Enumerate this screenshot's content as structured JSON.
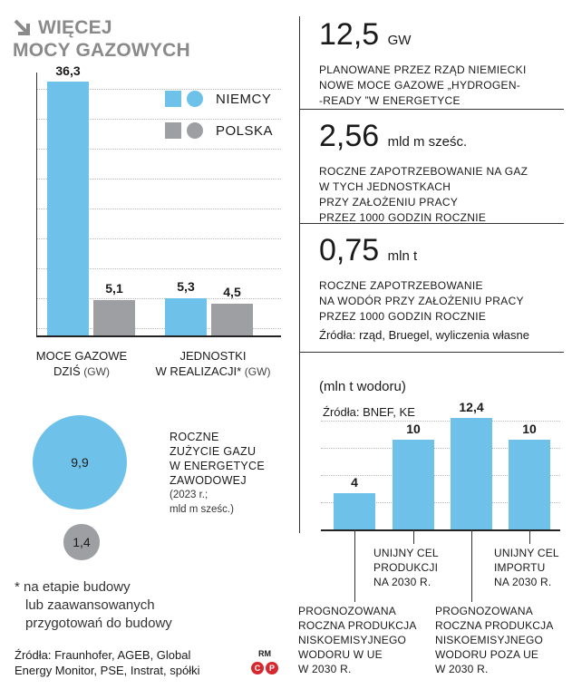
{
  "title": {
    "line1": "WIĘCEJ",
    "line2": "MOCY GAZOWYCH"
  },
  "colors": {
    "niemcy": "#6ec2ea",
    "polska": "#9d9fa2",
    "accent_gray": "#8a8a8a"
  },
  "chart_data": [
    {
      "type": "bar",
      "categories": [
        "MOCE GAZOWE DZIŚ (GW)",
        "JEDNOSTKI W REALIZACJI* (GW)"
      ],
      "category_lines": [
        {
          "line1": "MOCE GAZOWE",
          "line2": "DZIŚ",
          "unit": "(GW)"
        },
        {
          "line1": "JEDNOSTKI",
          "line2": "W REALIZACJI*",
          "unit": "(GW)"
        }
      ],
      "series": [
        {
          "name": "NIEMCY",
          "values": [
            36.3,
            5.3
          ],
          "labels": [
            "36,3",
            "5,3"
          ]
        },
        {
          "name": "POLSKA",
          "values": [
            5.1,
            4.5
          ],
          "labels": [
            "5,1",
            "4,5"
          ]
        }
      ],
      "legend_position": "top-right",
      "grid": true
    },
    {
      "type": "bubble",
      "title": "ROCZNE ZUŻYCIE GAZU W ENERGETYCE ZAWODOWEJ",
      "note": "(2023 r.; mld m sześc.)",
      "values": [
        9.9,
        1.4
      ],
      "labels": [
        "9,9",
        "1,4"
      ],
      "series_names": [
        "NIEMCY",
        "POLSKA"
      ]
    },
    {
      "type": "bar",
      "ylabel": "(mln t wodoru)",
      "source": "Źródła: BNEF, KE",
      "categories": [
        "PROGNOZOWANA ROCZNA PRODUKCJA NISKOEMISYJNEGO WODORU W UE W 2030 R.",
        "UNIJNY CEL PRODUKCJI NA 2030 R.",
        "PROGNOZOWANA ROCZNA PRODUKCJA NISKOEMISYJNEGO WODORU POZA UE W 2030 R.",
        "UNIJNY CEL IMPORTU NA 2030 R."
      ],
      "values": [
        4,
        10,
        12.4,
        10
      ],
      "labels": [
        "4",
        "10",
        "12,4",
        "10"
      ]
    }
  ],
  "bubble_text": {
    "line1": "ROCZNE",
    "line2": "ZUŻYCIE GAZU",
    "line3": "W ENERGETYCE",
    "line4": "ZAWODOWEJ",
    "note1": "(2023 r.;",
    "note2": "mld m sześc.)"
  },
  "stats": [
    {
      "value": "12,5",
      "unit": "GW",
      "lines": [
        "PLANOWANE PRZEZ RZĄD NIEMIECKI",
        "NOWE MOCE GAZOWE „HYDROGEN-",
        "-READY ”W ENERGETYCE"
      ]
    },
    {
      "value": "2,56",
      "unit": "mld m sześc.",
      "lines": [
        "ROCZNE ZAPOTRZEBOWANIE NA GAZ",
        "W TYCH JEDNOSTKACH",
        "PRZY ZAŁOŻENIU PRACY",
        "PRZEZ 1000 GODZIN ROCZNIE"
      ]
    },
    {
      "value": "0,75",
      "unit": "mln t",
      "lines": [
        "ROCZNE ZAPOTRZEBOWANIE",
        "NA WODÓR PRZY ZAŁOŻENIU PRACY",
        "PRZEZ 1000 GODZIN ROCZNIE"
      ]
    }
  ],
  "stats_source": "Źródła: rząd, Bruegel, wyliczenia własne",
  "h2_labels": [
    {
      "lines": [
        "PROGNOZOWANA",
        "ROCZNA PRODUKCJA",
        "NISKOEMISYJNEGO",
        "WODORU W UE",
        "W 2030 R."
      ]
    },
    {
      "lines": [
        "UNIJNY CEL",
        "PRODUKCJI",
        "NA 2030 R."
      ]
    },
    {
      "lines": [
        "PROGNOZOWANA",
        "ROCZNA PRODUKCJA",
        "NISKOEMISYJNEGO",
        "WODORU POZA UE",
        "W 2030 R."
      ]
    },
    {
      "lines": [
        "UNIJNY CEL",
        "IMPORTU",
        "NA 2030 R."
      ]
    }
  ],
  "footnote": {
    "line1": "* na etapie budowy",
    "line2": "lub zaawansowanych",
    "line3": "przygotowań do budowy"
  },
  "sources": {
    "line1": "Źródła: Fraunhofer, AGEB, Global",
    "line2": "Energy Monitor, PSE, Instrat, spółki"
  },
  "copyright": {
    "rm": "RM",
    "c": "C",
    "p": "P"
  }
}
